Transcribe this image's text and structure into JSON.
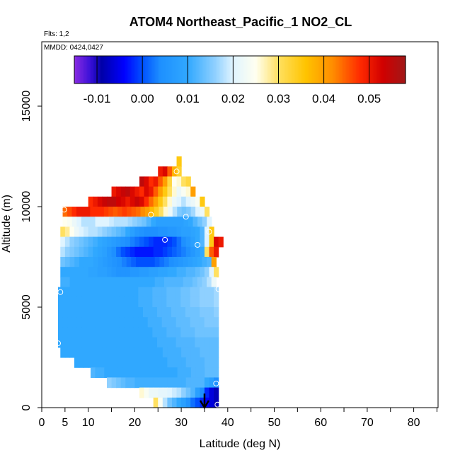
{
  "title": "ATOM4 Northeast_Pacific_1 NO2_CL",
  "flights_label": "Flts: 1,2",
  "mmdd_label": "MMDD: 0424,0427",
  "chart_data": {
    "type": "heatmap",
    "title": "ATOM4 Northeast_Pacific_1 NO2_CL",
    "xlabel": "Latitude (deg N)",
    "ylabel": "Altitude (m)",
    "xlim": [
      0,
      85
    ],
    "ylim": [
      0,
      17600
    ],
    "x_ticks": [
      0,
      5,
      10,
      20,
      30,
      40,
      50,
      60,
      70,
      80
    ],
    "y_ticks": [
      0,
      5000,
      10000,
      15000
    ],
    "colorbar": {
      "range": [
        -0.015,
        0.058
      ],
      "ticks": [
        -0.01,
        0.0,
        0.01,
        0.02,
        0.03,
        0.04,
        0.05
      ],
      "tick_labels": [
        "-0.01",
        "0.00",
        "0.01",
        "0.02",
        "0.03",
        "0.04",
        "0.05"
      ]
    },
    "rows": [
      {
        "alt": [
          12000,
          12500
        ],
        "lat": [
          29.0,
          30.0
        ],
        "values": [
          0.035
        ]
      },
      {
        "alt": [
          11500,
          12000
        ],
        "lat": [
          25.0,
          30.0
        ],
        "values": [
          0.05,
          0.052,
          0.045,
          0.038,
          0.033
        ]
      },
      {
        "alt": [
          11000,
          11500
        ],
        "lat": [
          21.0,
          32.0
        ],
        "values": [
          0.055,
          0.052,
          0.048,
          0.05,
          0.045,
          0.04,
          0.032,
          0.025,
          0.026,
          0.03,
          0.032
        ]
      },
      {
        "alt": [
          10500,
          11000
        ],
        "lat": [
          15.0,
          33.0
        ],
        "values": [
          0.05,
          0.052,
          0.054,
          0.055,
          0.052,
          0.05,
          0.048,
          0.052,
          0.05,
          0.045,
          0.04,
          0.035,
          0.03,
          0.026,
          0.022,
          0.024,
          0.026,
          0.04
        ]
      },
      {
        "alt": [
          10000,
          10500
        ],
        "lat": [
          10.0,
          35.0
        ],
        "values": [
          0.048,
          0.05,
          0.052,
          0.054,
          0.055,
          0.055,
          0.053,
          0.052,
          0.05,
          0.052,
          0.054,
          0.052,
          0.048,
          0.044,
          0.04,
          0.035,
          0.03,
          0.026,
          0.022,
          0.02,
          0.018,
          0.02,
          0.022,
          0.024,
          0.035
        ]
      },
      {
        "alt": [
          9500,
          10000
        ],
        "lat": [
          4.5,
          36.0
        ],
        "values": [
          0.044,
          0.046,
          0.048,
          0.05,
          0.05,
          0.05,
          0.048,
          0.048,
          0.048,
          0.047,
          0.046,
          0.045,
          0.046,
          0.047,
          0.046,
          0.045,
          0.044,
          0.042,
          0.04,
          0.037,
          0.034,
          0.03,
          0.026,
          0.022,
          0.018,
          0.015,
          0.014,
          0.015,
          0.017,
          0.02,
          0.022,
          0.03
        ]
      },
      {
        "alt": [
          9000,
          9500
        ],
        "lat": [
          4.5,
          36.5
        ],
        "values": [
          0.025,
          0.024,
          0.022,
          0.02,
          0.018,
          0.018,
          0.018,
          0.02,
          0.02,
          0.02,
          0.019,
          0.018,
          0.018,
          0.018,
          0.017,
          0.016,
          0.015,
          0.014,
          0.012,
          0.01,
          0.008,
          0.008,
          0.008,
          0.008,
          0.008,
          0.008,
          0.009,
          0.01,
          0.012,
          0.014,
          0.016,
          0.02
        ]
      },
      {
        "alt": [
          8500,
          9000
        ],
        "lat": [
          4.0,
          37.0
        ],
        "values": [
          0.03,
          0.028,
          0.025,
          0.022,
          0.02,
          0.019,
          0.018,
          0.018,
          0.017,
          0.016,
          0.015,
          0.014,
          0.013,
          0.012,
          0.01,
          0.008,
          0.006,
          0.005,
          0.004,
          0.004,
          0.004,
          0.005,
          0.005,
          0.006,
          0.006,
          0.007,
          0.008,
          0.008,
          0.009,
          0.01,
          0.012,
          0.02,
          0.035
        ]
      },
      {
        "alt": [
          8000,
          8500
        ],
        "lat": [
          4.0,
          39.0
        ],
        "values": [
          0.02,
          0.018,
          0.016,
          0.015,
          0.014,
          0.013,
          0.012,
          0.011,
          0.01,
          0.009,
          0.008,
          0.007,
          0.006,
          0.005,
          0.004,
          0.003,
          0.002,
          0.001,
          0.0,
          -0.001,
          -0.002,
          -0.002,
          -0.002,
          -0.001,
          0.0,
          0.002,
          0.004,
          0.006,
          0.008,
          0.01,
          0.012,
          0.02,
          0.035,
          0.052,
          0.05
        ]
      },
      {
        "alt": [
          7500,
          8000
        ],
        "lat": [
          4.0,
          38.0
        ],
        "values": [
          0.018,
          0.016,
          0.015,
          0.014,
          0.013,
          0.012,
          0.011,
          0.01,
          0.009,
          0.008,
          0.006,
          0.004,
          0.002,
          0.0,
          -0.001,
          -0.002,
          -0.003,
          -0.003,
          -0.003,
          -0.003,
          -0.002,
          -0.002,
          -0.001,
          0.0,
          0.001,
          0.002,
          0.003,
          0.004,
          0.006,
          0.008,
          0.01,
          0.03,
          0.045,
          0.05
        ]
      },
      {
        "alt": [
          7000,
          7500
        ],
        "lat": [
          4.0,
          37.5
        ],
        "values": [
          0.014,
          0.013,
          0.012,
          0.011,
          0.01,
          0.01,
          0.01,
          0.009,
          0.008,
          0.007,
          0.006,
          0.005,
          0.004,
          0.003,
          0.002,
          0.001,
          0.0,
          0.0,
          0.0,
          0.0,
          0.001,
          0.002,
          0.003,
          0.004,
          0.005,
          0.006,
          0.007,
          0.008,
          0.009,
          0.01,
          0.011,
          0.012,
          0.04
        ]
      },
      {
        "alt": [
          6500,
          7000
        ],
        "lat": [
          4.0,
          38.0
        ],
        "values": [
          0.01,
          0.01,
          0.01,
          0.01,
          0.01,
          0.01,
          0.009,
          0.009,
          0.008,
          0.008,
          0.007,
          0.006,
          0.005,
          0.005,
          0.005,
          0.006,
          0.006,
          0.007,
          0.007,
          0.008,
          0.008,
          0.009,
          0.009,
          0.01,
          0.01,
          0.011,
          0.011,
          0.012,
          0.012,
          0.013,
          0.014,
          0.016,
          0.02,
          0.03
        ]
      },
      {
        "alt": [
          6000,
          6500
        ],
        "lat": [
          4.0,
          37.5
        ],
        "values": [
          0.011,
          0.011,
          0.01,
          0.01,
          0.01,
          0.01,
          0.01,
          0.01,
          0.01,
          0.01,
          0.01,
          0.01,
          0.01,
          0.01,
          0.01,
          0.01,
          0.01,
          0.01,
          0.01,
          0.01,
          0.011,
          0.011,
          0.012,
          0.012,
          0.012,
          0.012,
          0.013,
          0.013,
          0.014,
          0.015,
          0.016,
          0.018,
          0.022
        ]
      },
      {
        "alt": [
          5500,
          6000
        ],
        "lat": [
          3.5,
          38.0
        ],
        "values": [
          0.01,
          0.01,
          0.01,
          0.01,
          0.01,
          0.01,
          0.01,
          0.01,
          0.01,
          0.01,
          0.01,
          0.01,
          0.01,
          0.01,
          0.01,
          0.01,
          0.01,
          0.011,
          0.011,
          0.011,
          0.012,
          0.012,
          0.012,
          0.013,
          0.013,
          0.013,
          0.014,
          0.014,
          0.015,
          0.015,
          0.016,
          0.016,
          0.016,
          0.017
        ]
      },
      {
        "alt": [
          5000,
          5500
        ],
        "lat": [
          3.5,
          38.0
        ],
        "values": [
          0.01,
          0.01,
          0.01,
          0.01,
          0.01,
          0.01,
          0.01,
          0.01,
          0.01,
          0.01,
          0.01,
          0.01,
          0.01,
          0.01,
          0.01,
          0.01,
          0.01,
          0.011,
          0.011,
          0.011,
          0.012,
          0.012,
          0.012,
          0.013,
          0.013,
          0.013,
          0.014,
          0.014,
          0.015,
          0.015,
          0.016,
          0.016,
          0.016,
          0.017
        ]
      },
      {
        "alt": [
          4500,
          5000
        ],
        "lat": [
          3.5,
          38.0
        ],
        "values": [
          0.01,
          0.01,
          0.01,
          0.01,
          0.01,
          0.01,
          0.01,
          0.01,
          0.01,
          0.01,
          0.01,
          0.01,
          0.01,
          0.01,
          0.01,
          0.01,
          0.01,
          0.01,
          0.011,
          0.011,
          0.011,
          0.012,
          0.012,
          0.012,
          0.013,
          0.013,
          0.013,
          0.014,
          0.014,
          0.014,
          0.015,
          0.015,
          0.015,
          0.016
        ]
      },
      {
        "alt": [
          4000,
          4500
        ],
        "lat": [
          3.5,
          38.0
        ],
        "values": [
          0.01,
          0.01,
          0.01,
          0.01,
          0.01,
          0.01,
          0.01,
          0.01,
          0.01,
          0.01,
          0.01,
          0.01,
          0.01,
          0.01,
          0.01,
          0.01,
          0.01,
          0.01,
          0.01,
          0.011,
          0.011,
          0.011,
          0.012,
          0.012,
          0.012,
          0.013,
          0.013,
          0.013,
          0.014,
          0.014,
          0.014,
          0.015,
          0.015,
          0.015
        ]
      },
      {
        "alt": [
          3500,
          4000
        ],
        "lat": [
          3.5,
          38.0
        ],
        "values": [
          0.01,
          0.01,
          0.01,
          0.01,
          0.01,
          0.01,
          0.01,
          0.01,
          0.01,
          0.01,
          0.01,
          0.01,
          0.01,
          0.01,
          0.01,
          0.01,
          0.01,
          0.01,
          0.01,
          0.01,
          0.011,
          0.011,
          0.011,
          0.012,
          0.012,
          0.012,
          0.013,
          0.013,
          0.013,
          0.014,
          0.014,
          0.014,
          0.014,
          0.014
        ]
      },
      {
        "alt": [
          3000,
          3500
        ],
        "lat": [
          3.5,
          38.0
        ],
        "values": [
          0.01,
          0.01,
          0.01,
          0.01,
          0.01,
          0.01,
          0.01,
          0.01,
          0.01,
          0.01,
          0.01,
          0.01,
          0.01,
          0.01,
          0.01,
          0.01,
          0.01,
          0.01,
          0.01,
          0.01,
          0.01,
          0.011,
          0.011,
          0.011,
          0.011,
          0.012,
          0.012,
          0.012,
          0.012,
          0.013,
          0.013,
          0.013,
          0.013,
          0.013
        ]
      },
      {
        "alt": [
          2500,
          3000
        ],
        "lat": [
          4.0,
          38.0
        ],
        "values": [
          0.01,
          0.01,
          0.01,
          0.01,
          0.01,
          0.01,
          0.01,
          0.01,
          0.01,
          0.01,
          0.01,
          0.01,
          0.01,
          0.01,
          0.01,
          0.01,
          0.01,
          0.01,
          0.01,
          0.01,
          0.01,
          0.01,
          0.011,
          0.011,
          0.011,
          0.011,
          0.012,
          0.012,
          0.012,
          0.012,
          0.013,
          0.013,
          0.013,
          0.013
        ]
      },
      {
        "alt": [
          2000,
          2500
        ],
        "lat": [
          7.0,
          38.0
        ],
        "values": [
          0.01,
          0.01,
          0.01,
          0.01,
          0.01,
          0.01,
          0.01,
          0.01,
          0.01,
          0.01,
          0.01,
          0.01,
          0.01,
          0.01,
          0.01,
          0.01,
          0.01,
          0.01,
          0.01,
          0.01,
          0.011,
          0.011,
          0.011,
          0.011,
          0.012,
          0.012,
          0.012,
          0.012,
          0.013,
          0.013,
          0.013
        ]
      },
      {
        "alt": [
          1500,
          2000
        ],
        "lat": [
          10.5,
          38.0
        ],
        "values": [
          0.012,
          0.011,
          0.011,
          0.01,
          0.01,
          0.01,
          0.01,
          0.01,
          0.01,
          0.01,
          0.01,
          0.01,
          0.01,
          0.01,
          0.01,
          0.01,
          0.01,
          0.01,
          0.01,
          0.011,
          0.011,
          0.011,
          0.012,
          0.012,
          0.012,
          0.013,
          0.013,
          0.013
        ]
      },
      {
        "alt": [
          1000,
          1500
        ],
        "lat": [
          14.0,
          38.0
        ],
        "values": [
          0.016,
          0.015,
          0.014,
          0.013,
          0.012,
          0.012,
          0.011,
          0.011,
          0.011,
          0.011,
          0.011,
          0.011,
          0.011,
          0.011,
          0.011,
          0.011,
          0.011,
          0.012,
          0.012,
          0.012,
          0.012,
          0.01,
          0.008,
          0.004
        ]
      },
      {
        "alt": [
          500,
          1000
        ],
        "lat": [
          21.0,
          38.0
        ],
        "values": [
          0.026,
          0.024,
          0.022,
          0.022,
          0.021,
          0.021,
          0.02,
          0.019,
          0.018,
          0.016,
          0.014,
          0.012,
          0.008,
          0.004,
          -0.002,
          -0.006,
          -0.008
        ]
      },
      {
        "alt": [
          0,
          500
        ],
        "lat": [
          24.0,
          38.0
        ],
        "values": [
          0.03,
          0.024,
          0.018,
          0.014,
          0.012,
          0.01,
          0.008,
          0.005,
          0.002,
          0.0,
          -0.002,
          -0.004,
          -0.006,
          -0.008
        ]
      }
    ],
    "flight_markers": [
      {
        "lat": 29.0,
        "alt": 11750
      },
      {
        "lat": 4.8,
        "alt": 9850
      },
      {
        "lat": 23.5,
        "alt": 9600
      },
      {
        "lat": 31.0,
        "alt": 9500
      },
      {
        "lat": 36.0,
        "alt": 8750
      },
      {
        "lat": 26.5,
        "alt": 8350
      },
      {
        "lat": 33.5,
        "alt": 8100
      },
      {
        "lat": 4.0,
        "alt": 5750
      },
      {
        "lat": 38.0,
        "alt": 5900
      },
      {
        "lat": 3.5,
        "alt": 3200
      },
      {
        "lat": 37.5,
        "alt": 1200
      },
      {
        "lat": 37.8,
        "alt": 150
      }
    ],
    "arrow_marker": {
      "lat": 35.0,
      "alt_top": 700,
      "alt_bottom": 0
    }
  }
}
